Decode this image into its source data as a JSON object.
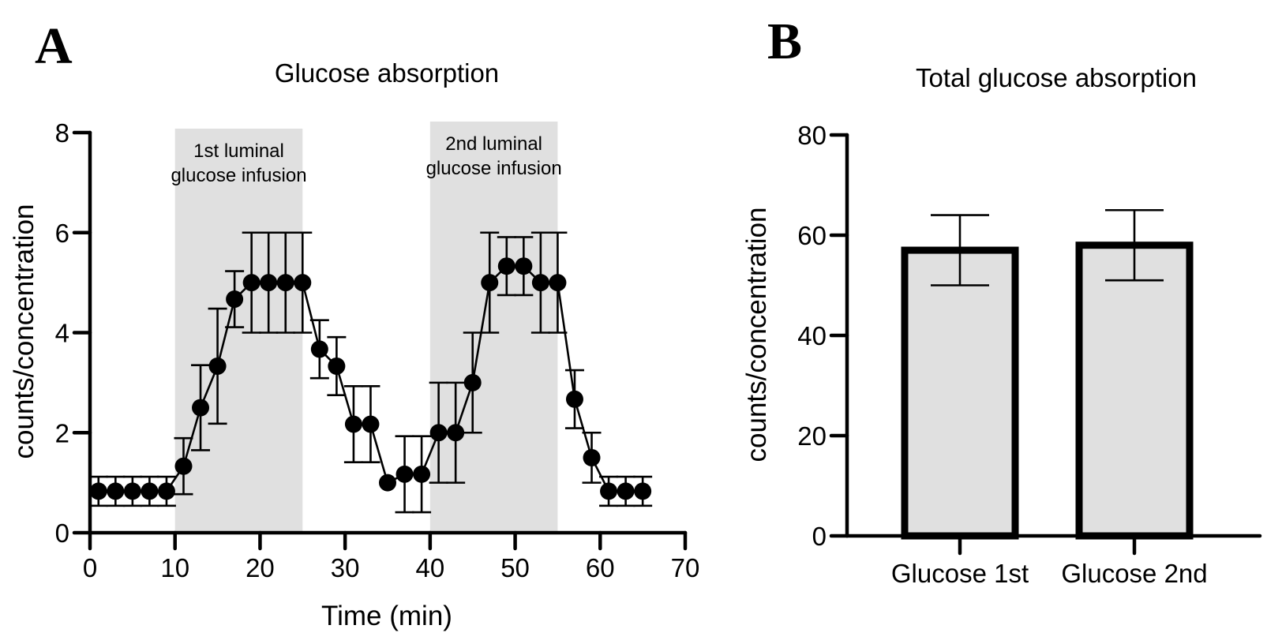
{
  "chart_data": [
    {
      "panel": "A",
      "type": "line",
      "title": "Glucose absorption",
      "xlabel": "Time (min)",
      "ylabel": "counts/concentration",
      "xlim": [
        0,
        70
      ],
      "ylim": [
        0,
        8
      ],
      "xticks": [
        0,
        10,
        20,
        30,
        40,
        50,
        60,
        70
      ],
      "yticks": [
        0,
        2,
        4,
        6,
        8
      ],
      "grid": false,
      "shaded_regions": [
        {
          "x": [
            10,
            25
          ],
          "label_lines": [
            "1st luminal",
            "glucose infusion"
          ]
        },
        {
          "x": [
            40,
            55
          ],
          "label_lines": [
            "2nd luminal",
            "glucose infusion"
          ]
        }
      ],
      "series": [
        {
          "name": "Glucose absorption",
          "marker": "filled-circle",
          "x": [
            1,
            3,
            5,
            7,
            9,
            11,
            13,
            15,
            17,
            19,
            21,
            23,
            25,
            27,
            29,
            31,
            33,
            35,
            37,
            39,
            41,
            43,
            45,
            47,
            49,
            51,
            53,
            55,
            57,
            59,
            61,
            63,
            65
          ],
          "y": [
            0.83,
            0.83,
            0.83,
            0.83,
            0.83,
            1.33,
            2.5,
            3.33,
            4.67,
            5.0,
            5.0,
            5.0,
            5.0,
            3.67,
            3.33,
            2.17,
            2.17,
            1.0,
            1.17,
            1.17,
            2.0,
            2.0,
            3.0,
            5.0,
            5.33,
            5.33,
            5.0,
            5.0,
            2.67,
            1.5,
            0.83,
            0.83,
            0.83
          ],
          "error": [
            0.29,
            0.29,
            0.29,
            0.29,
            0.29,
            0.56,
            0.85,
            1.15,
            0.56,
            1.0,
            1.0,
            1.0,
            1.0,
            0.58,
            0.58,
            0.76,
            0.76,
            0.0,
            0.76,
            0.76,
            1.0,
            1.0,
            1.0,
            1.0,
            0.58,
            0.58,
            1.0,
            1.0,
            0.58,
            0.5,
            0.29,
            0.29,
            0.29
          ]
        }
      ]
    },
    {
      "panel": "B",
      "type": "bar",
      "title": "Total glucose absorption",
      "xlabel": "",
      "ylabel": "counts/concentration",
      "ylim": [
        0,
        80
      ],
      "yticks": [
        0,
        20,
        40,
        60,
        80
      ],
      "grid": false,
      "categories": [
        "Glucose 1st",
        "Glucose 2nd"
      ],
      "values": [
        57,
        58
      ],
      "error": [
        7,
        7
      ]
    }
  ],
  "panels": {
    "a_letter": "A",
    "b_letter": "B"
  },
  "colors": {
    "shade": "#e0e0e0",
    "bar_fill": "#e0e0e0",
    "ink": "#000000"
  }
}
